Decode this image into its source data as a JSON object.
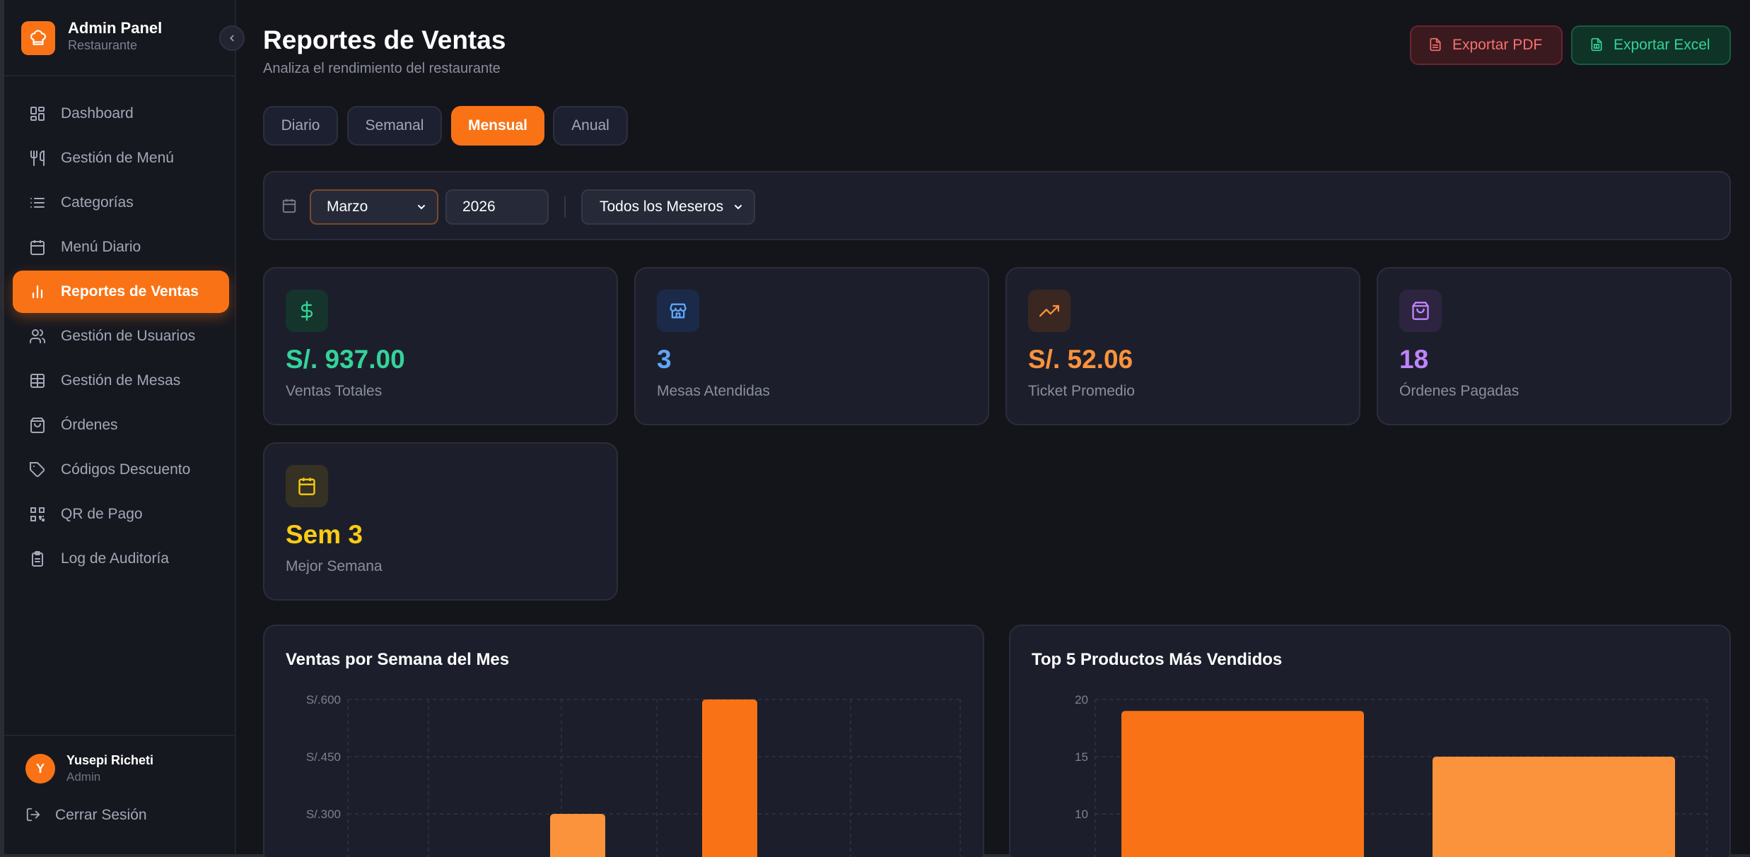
{
  "sidebar": {
    "brand_title": "Admin Panel",
    "brand_sub": "Restaurante",
    "items": [
      {
        "label": "Dashboard",
        "icon": "grid-icon"
      },
      {
        "label": "Gestión de Menú",
        "icon": "utensils-icon"
      },
      {
        "label": "Categorías",
        "icon": "list-icon"
      },
      {
        "label": "Menú Diario",
        "icon": "calendar-icon"
      },
      {
        "label": "Reportes de Ventas",
        "icon": "bar-chart-icon",
        "active": true
      },
      {
        "label": "Gestión de Usuarios",
        "icon": "users-icon"
      },
      {
        "label": "Gestión de Mesas",
        "icon": "table-icon"
      },
      {
        "label": "Órdenes",
        "icon": "shopping-bag-icon"
      },
      {
        "label": "Códigos Descuento",
        "icon": "tag-icon"
      },
      {
        "label": "QR de Pago",
        "icon": "qr-code-icon"
      },
      {
        "label": "Log de Auditoría",
        "icon": "clipboard-icon"
      }
    ],
    "user": {
      "initial": "Y",
      "name": "Yusepi Richeti",
      "role": "Admin"
    },
    "logout_label": "Cerrar Sesión"
  },
  "header": {
    "title": "Reportes de Ventas",
    "subtitle": "Analiza el rendimiento del restaurante",
    "export_pdf": "Exportar PDF",
    "export_excel": "Exportar Excel"
  },
  "tabs": [
    {
      "label": "Diario"
    },
    {
      "label": "Semanal"
    },
    {
      "label": "Mensual",
      "active": true
    },
    {
      "label": "Anual"
    }
  ],
  "filters": {
    "month": "Marzo",
    "year": "2026",
    "mesero": "Todos los Meseros"
  },
  "stats": [
    {
      "value": "S/. 937.00",
      "label": "Ventas Totales",
      "color": "#34d399",
      "icon": "dollar-icon"
    },
    {
      "value": "3",
      "label": "Mesas Atendidas",
      "color": "#60a5fa",
      "icon": "store-icon"
    },
    {
      "value": "S/. 52.06",
      "label": "Ticket Promedio",
      "color": "#fb923c",
      "icon": "trending-up-icon"
    },
    {
      "value": "18",
      "label": "Órdenes Pagadas",
      "color": "#c084fc",
      "icon": "shopping-bag-icon"
    },
    {
      "value": "Sem 3",
      "label": "Mejor Semana",
      "color": "#facc15",
      "icon": "calendar-icon"
    }
  ],
  "colors": {
    "accent": "#f97316",
    "bar_light": "#fb923c"
  },
  "chart_data": [
    {
      "type": "bar",
      "title": "Ventas por Semana del Mes",
      "y_ticks": [
        "S/.600",
        "S/.450",
        "S/.300"
      ],
      "ylim": [
        0,
        600
      ],
      "visible_bars": [
        {
          "value": 300
        },
        {
          "value": 600
        }
      ],
      "grid": true
    },
    {
      "type": "bar",
      "title": "Top 5 Productos Más Vendidos",
      "y_ticks": [
        "20",
        "15",
        "10"
      ],
      "ylim": [
        0,
        20
      ],
      "visible_bars": [
        {
          "value": 19
        },
        {
          "value": 15
        }
      ],
      "grid": true
    }
  ]
}
